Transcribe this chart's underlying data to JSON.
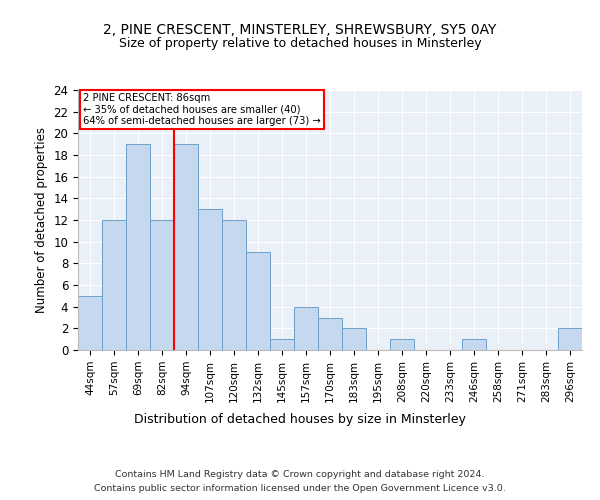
{
  "title": "2, PINE CRESCENT, MINSTERLEY, SHREWSBURY, SY5 0AY",
  "subtitle": "Size of property relative to detached houses in Minsterley",
  "xlabel_bottom": "Distribution of detached houses by size in Minsterley",
  "ylabel": "Number of detached properties",
  "categories": [
    "44sqm",
    "57sqm",
    "69sqm",
    "82sqm",
    "94sqm",
    "107sqm",
    "120sqm",
    "132sqm",
    "145sqm",
    "157sqm",
    "170sqm",
    "183sqm",
    "195sqm",
    "208sqm",
    "220sqm",
    "233sqm",
    "246sqm",
    "258sqm",
    "271sqm",
    "283sqm",
    "296sqm"
  ],
  "values": [
    5,
    12,
    19,
    12,
    19,
    13,
    12,
    9,
    1,
    4,
    3,
    2,
    0,
    1,
    0,
    0,
    1,
    0,
    0,
    0,
    2
  ],
  "bar_color": "#c5d8ed",
  "bar_edge_color": "#6aa0cb",
  "vline_x": 3.5,
  "vline_color": "red",
  "annotation_line1": "2 PINE CRESCENT: 86sqm",
  "annotation_line2": "← 35% of detached houses are smaller (40)",
  "annotation_line3": "64% of semi-detached houses are larger (73) →",
  "annotation_box_color": "red",
  "ylim": [
    0,
    24
  ],
  "yticks": [
    0,
    2,
    4,
    6,
    8,
    10,
    12,
    14,
    16,
    18,
    20,
    22,
    24
  ],
  "footer_line1": "Contains HM Land Registry data © Crown copyright and database right 2024.",
  "footer_line2": "Contains public sector information licensed under the Open Government Licence v3.0.",
  "plot_background": "#eaf0f8"
}
